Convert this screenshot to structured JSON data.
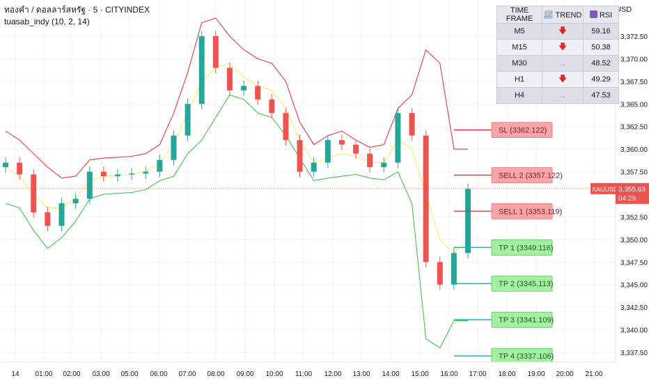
{
  "legend": {
    "line1": "ทองคำ / ดอลลาร์สหรัฐ · 5 · CITYINDEX",
    "line2": "tuasab_indy (10, 2, 14)"
  },
  "price_axis": {
    "currency": "USD",
    "ticks": [
      "3,372.50",
      "3,370.00",
      "3,367.50",
      "3,365.00",
      "3,362.50",
      "3,360.00",
      "3,357.50",
      "3,352.50",
      "3,350.00",
      "3,347.50",
      "3,345.00",
      "3,342.50",
      "3,340.00",
      "3,337.50"
    ],
    "tick_values": [
      3372.5,
      3370,
      3367.5,
      3365,
      3362.5,
      3360,
      3357.5,
      3352.5,
      3350,
      3347.5,
      3345,
      3342.5,
      3340,
      3337.5
    ],
    "current_symbol": "XAUUSD",
    "current_price": "3,355.63",
    "countdown": "04:29"
  },
  "time_axis": {
    "labels": [
      "14",
      "01:00",
      "02:00",
      "03:00",
      "05:00",
      "06:00",
      "07:00",
      "08:00",
      "09:00",
      "10:00",
      "11:00",
      "12:00",
      "13:00",
      "14:00",
      "15:00",
      "16:00",
      "17:00",
      "18:00",
      "19:00",
      "20:00",
      "21:00"
    ]
  },
  "timeframe_table": {
    "headers": {
      "tf": "TIME FRAME",
      "trend": "TREND",
      "rsi": "RSI"
    },
    "rows": [
      {
        "tf": "M5",
        "trend": "down",
        "rsi": "59.16"
      },
      {
        "tf": "M15",
        "trend": "down",
        "rsi": "50.38"
      },
      {
        "tf": "M30",
        "trend": "flat",
        "rsi": "48.52"
      },
      {
        "tf": "H1",
        "trend": "down",
        "rsi": "49.29"
      },
      {
        "tf": "H4",
        "trend": "flat",
        "rsi": "47.53"
      }
    ]
  },
  "trade_levels": [
    {
      "label": "SL (3362.122)",
      "price": 3362.122,
      "kind": "sell"
    },
    {
      "label": "SELL 2 (3357.122)",
      "price": 3357.122,
      "kind": "sell"
    },
    {
      "label": "SELL 1 (3353.119)",
      "price": 3353.119,
      "kind": "sell"
    },
    {
      "label": "TP 1 (3349.116)",
      "price": 3349.116,
      "kind": "tp"
    },
    {
      "label": "TP 2 (3345.113)",
      "price": 3345.113,
      "kind": "tp"
    },
    {
      "label": "TP 3 (3341.109)",
      "price": 3341.109,
      "kind": "tp"
    },
    {
      "label": "TP 4 (3337.106)",
      "price": 3337.106,
      "kind": "tp"
    }
  ],
  "colors": {
    "bull": "#26a69a",
    "bear": "#ef5350",
    "band_outer": "#e53945",
    "band_mid": "#f2ee5c",
    "band_lower": "#43c24d",
    "sell_fill": "#f7a5a6",
    "tp_fill": "#a5f0a0",
    "tp_line": "#00bcd4"
  },
  "chart_data": {
    "type": "candlestick",
    "symbol": "XAUUSD",
    "timeframe": "5",
    "ylim": [
      3336,
      3376
    ],
    "x": [
      "00:00",
      "00:30",
      "01:00",
      "01:30",
      "02:00",
      "02:30",
      "03:00",
      "03:30",
      "04:00",
      "04:30",
      "05:00",
      "05:30",
      "06:00",
      "06:30",
      "07:00",
      "07:30",
      "08:00",
      "08:30",
      "09:00",
      "09:30",
      "10:00",
      "10:30",
      "11:00",
      "11:30",
      "12:00",
      "12:30",
      "13:00",
      "13:30",
      "14:00",
      "14:30",
      "15:00",
      "15:30",
      "16:00",
      "16:15"
    ],
    "close": [
      3358.5,
      3357.2,
      3353.0,
      3351.5,
      3354.0,
      3354.5,
      3357.5,
      3357.0,
      3357.2,
      3357.3,
      3357.5,
      3358.8,
      3361.5,
      3365.0,
      3372.5,
      3369.0,
      3366.5,
      3367.0,
      3365.5,
      3364.0,
      3361.0,
      3357.5,
      3358.5,
      3361.0,
      3360.5,
      3359.5,
      3358.0,
      3358.5,
      3364.0,
      3361.5,
      3347.5,
      3345.0,
      3348.5,
      3355.6
    ],
    "series": [
      {
        "name": "upper_band",
        "values": [
          3362.0,
          3361.0,
          3359.5,
          3358.0,
          3356.8,
          3357.0,
          3358.8,
          3359.0,
          3359.1,
          3359.2,
          3359.5,
          3360.5,
          3364.0,
          3368.5,
          3374.0,
          3374.5,
          3372.5,
          3371.0,
          3370.0,
          3369.5,
          3367.5,
          3363.0,
          3360.5,
          3361.5,
          3362.0,
          3361.0,
          3360.2,
          3360.5,
          3364.5,
          3366.0,
          3371.0,
          3369.5,
          3360.0,
          3360.0
        ]
      },
      {
        "name": "middle_band",
        "values": [
          3358.0,
          3357.0,
          3355.0,
          3353.5,
          3353.5,
          3354.5,
          3356.5,
          3357.0,
          3357.1,
          3357.2,
          3357.5,
          3358.5,
          3360.5,
          3364.0,
          3367.5,
          3369.0,
          3369.5,
          3368.0,
          3367.0,
          3366.5,
          3364.5,
          3361.0,
          3358.5,
          3359.0,
          3359.5,
          3359.2,
          3358.5,
          3358.5,
          3361.0,
          3360.0,
          3355.0,
          3350.0,
          3348.5,
          3350.0
        ]
      },
      {
        "name": "lower_band",
        "values": [
          3354.0,
          3353.5,
          3351.0,
          3349.0,
          3350.2,
          3352.0,
          3354.5,
          3355.0,
          3355.1,
          3355.2,
          3355.5,
          3356.5,
          3357.0,
          3359.5,
          3361.0,
          3363.5,
          3366.0,
          3365.5,
          3364.0,
          3363.5,
          3361.5,
          3359.0,
          3356.5,
          3356.8,
          3357.0,
          3357.2,
          3356.8,
          3356.6,
          3357.5,
          3354.0,
          3339.0,
          3338.0,
          3341.0,
          3341.0
        ]
      }
    ]
  }
}
